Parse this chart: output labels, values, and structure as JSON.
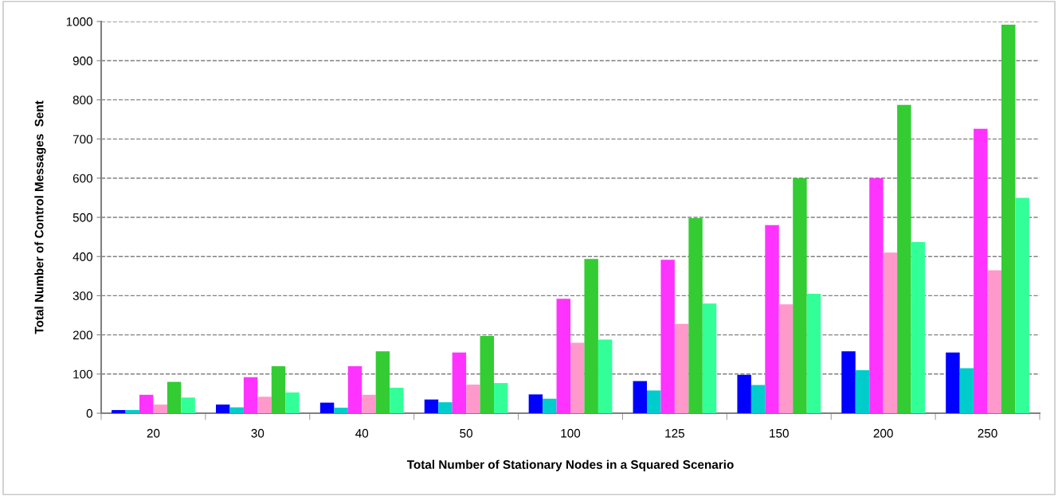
{
  "chart_data": {
    "type": "bar",
    "xlabel": "Total Number of Stationary Nodes in a Squared Scenario",
    "ylabel": "Total Number of Control Messages  Sent",
    "categories": [
      "20",
      "30",
      "40",
      "50",
      "100",
      "125",
      "150",
      "200",
      "250"
    ],
    "series": [
      {
        "color": "#0000ff",
        "values": [
          8,
          22,
          27,
          35,
          48,
          82,
          98,
          158,
          155
        ]
      },
      {
        "color": "#00cccc",
        "values": [
          8,
          15,
          14,
          28,
          37,
          58,
          72,
          110,
          115
        ]
      },
      {
        "color": "#ff33ff",
        "values": [
          47,
          92,
          120,
          155,
          292,
          392,
          480,
          600,
          726
        ]
      },
      {
        "color": "#ff99cc",
        "values": [
          22,
          42,
          47,
          73,
          180,
          228,
          278,
          410,
          365
        ]
      },
      {
        "color": "#33cc33",
        "values": [
          80,
          120,
          158,
          197,
          394,
          498,
          600,
          787,
          992
        ]
      },
      {
        "color": "#33ff99",
        "values": [
          40,
          53,
          65,
          77,
          188,
          280,
          305,
          437,
          550
        ]
      }
    ],
    "ylim": [
      0,
      1000
    ],
    "yticks": [
      0,
      100,
      200,
      300,
      400,
      500,
      600,
      700,
      800,
      900,
      1000
    ],
    "grid": "y",
    "legend": false
  }
}
